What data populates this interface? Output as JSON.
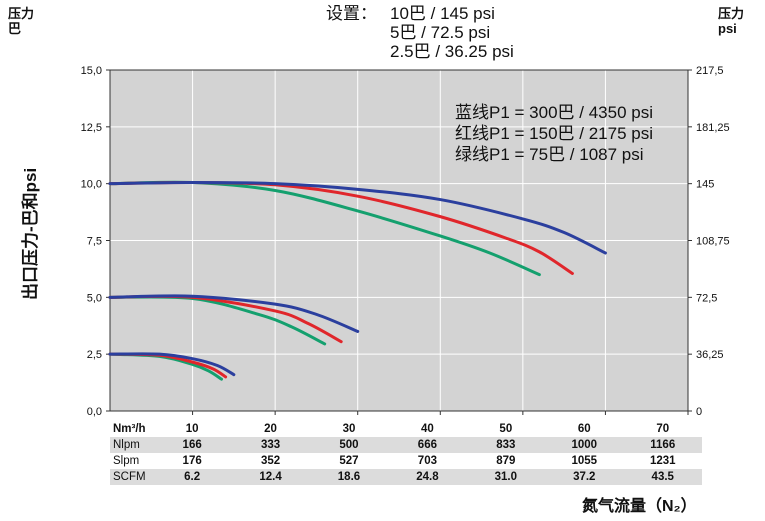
{
  "header": {
    "left_axis_title_line1": "压力",
    "left_axis_title_line2": "巴",
    "right_axis_title_line1": "压力",
    "right_axis_title_line2": "psi",
    "settings_label": "设置：",
    "settings": [
      "10巴 / 145 psi",
      "5巴 / 72.5 psi",
      "2.5巴 / 36.25 psi"
    ]
  },
  "legend_text": [
    "蓝线P1 = 300巴 / 4350 psi",
    "红线P1 = 150巴 / 2175 psi",
    "绿线P1 = 75巴 / 1087 psi"
  ],
  "y_axis_title": "出口压力-巴和psi",
  "x_axis_title": "氮气流量（N₂）",
  "colors": {
    "blue": "#2b3f9e",
    "red": "#e0262b",
    "green": "#14a06e",
    "plot_bg": "#d3d3d3",
    "grid": "#ffffff"
  },
  "chart_data": {
    "type": "line",
    "xlim": [
      0,
      70
    ],
    "ylim": [
      0,
      15
    ],
    "x_ticks": [
      "10",
      "20",
      "30",
      "40",
      "50",
      "60",
      "70"
    ],
    "y_ticks_left": [
      "0,0",
      "2,5",
      "5,0",
      "7,5",
      "10,0",
      "12,5",
      "15,0"
    ],
    "y_ticks_right": [
      "0",
      "36,25",
      "72,5",
      "108,75",
      "145",
      "181,25",
      "217,5"
    ],
    "series": [
      {
        "name": "蓝线P1 = 300巴 / 4350 psi",
        "color": "blue",
        "setting": "10",
        "points": [
          [
            0,
            10
          ],
          [
            10,
            10.05
          ],
          [
            20,
            10
          ],
          [
            30,
            9.75
          ],
          [
            40,
            9.3
          ],
          [
            50,
            8.45
          ],
          [
            55,
            7.85
          ],
          [
            60,
            6.95
          ]
        ]
      },
      {
        "name": "红线P1 = 150巴 / 2175 psi",
        "color": "red",
        "setting": "10",
        "points": [
          [
            0,
            10
          ],
          [
            10,
            10.05
          ],
          [
            20,
            9.95
          ],
          [
            30,
            9.45
          ],
          [
            40,
            8.55
          ],
          [
            48,
            7.6
          ],
          [
            52,
            7.0
          ],
          [
            56,
            6.05
          ]
        ]
      },
      {
        "name": "绿线P1 = 75巴 / 1087 psi",
        "color": "green",
        "setting": "10",
        "points": [
          [
            0,
            10
          ],
          [
            10,
            10.05
          ],
          [
            20,
            9.7
          ],
          [
            30,
            8.8
          ],
          [
            40,
            7.7
          ],
          [
            46,
            6.95
          ],
          [
            52,
            6.0
          ]
        ]
      },
      {
        "name": "",
        "color": "blue",
        "setting": "5",
        "points": [
          [
            0,
            5
          ],
          [
            10,
            5.05
          ],
          [
            20,
            4.7
          ],
          [
            25,
            4.25
          ],
          [
            30,
            3.5
          ]
        ]
      },
      {
        "name": "",
        "color": "red",
        "setting": "5",
        "points": [
          [
            0,
            5
          ],
          [
            10,
            5.0
          ],
          [
            20,
            4.4
          ],
          [
            24,
            3.85
          ],
          [
            28,
            3.05
          ]
        ]
      },
      {
        "name": "",
        "color": "green",
        "setting": "5",
        "points": [
          [
            0,
            5
          ],
          [
            10,
            4.95
          ],
          [
            18,
            4.25
          ],
          [
            22,
            3.7
          ],
          [
            26,
            2.95
          ]
        ]
      },
      {
        "name": "",
        "color": "blue",
        "setting": "2.5",
        "points": [
          [
            0,
            2.5
          ],
          [
            6,
            2.5
          ],
          [
            10,
            2.3
          ],
          [
            13,
            2.0
          ],
          [
            15,
            1.6
          ]
        ]
      },
      {
        "name": "",
        "color": "red",
        "setting": "2.5",
        "points": [
          [
            0,
            2.5
          ],
          [
            6,
            2.45
          ],
          [
            10,
            2.15
          ],
          [
            12.5,
            1.85
          ],
          [
            14,
            1.5
          ]
        ]
      },
      {
        "name": "",
        "color": "green",
        "setting": "2.5",
        "points": [
          [
            0,
            2.5
          ],
          [
            6,
            2.4
          ],
          [
            10,
            2.05
          ],
          [
            12,
            1.75
          ],
          [
            13.5,
            1.4
          ]
        ]
      }
    ]
  },
  "flow_table": {
    "rows": [
      {
        "unit": "Nm³/h",
        "values": [
          "10",
          "20",
          "30",
          "40",
          "50",
          "60",
          "70"
        ]
      },
      {
        "unit": "Nlpm",
        "values": [
          "166",
          "333",
          "500",
          "666",
          "833",
          "1000",
          "1166"
        ]
      },
      {
        "unit": "Slpm",
        "values": [
          "176",
          "352",
          "527",
          "703",
          "879",
          "1055",
          "1231"
        ]
      },
      {
        "unit": "SCFM",
        "values": [
          "6.2",
          "12.4",
          "18.6",
          "24.8",
          "31.0",
          "37.2",
          "43.5"
        ]
      }
    ]
  }
}
